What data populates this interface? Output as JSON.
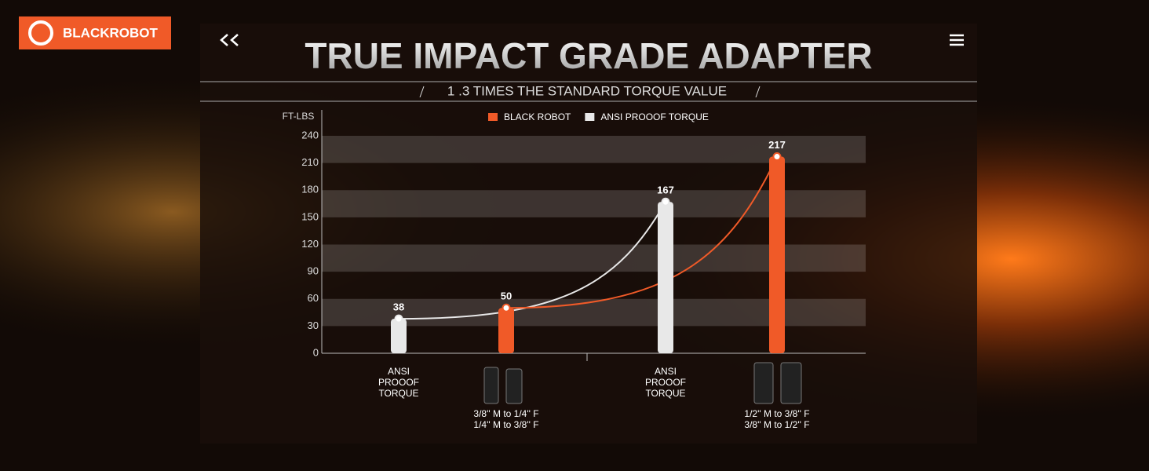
{
  "brand": "BLACKROBOT",
  "chart_data": {
    "type": "bar",
    "title": "TRUE IMPACT GRADE ADAPTER",
    "subtitle": "1 .3 TIMES THE STANDARD TORQUE VALUE",
    "ylabel": "FT-LBS",
    "categories": [
      [
        "ANSI",
        "PROOOF",
        "TORQUE"
      ],
      [
        "3/8'' M to 1/4'' F",
        "1/4'' M to 3/8'' F"
      ],
      [
        "ANSI",
        "PROOOF",
        "TORQUE"
      ],
      [
        "1/2'' M to 3/8'' F",
        "3/8'' M to 1/2'' F"
      ]
    ],
    "series": [
      {
        "name": "BLACK ROBOT",
        "color": "#f05a28",
        "values": [
          null,
          50,
          null,
          217
        ]
      },
      {
        "name": "ANSI PROOOF TORQUE",
        "color": "#e8e8e8",
        "values": [
          38,
          null,
          167,
          null
        ]
      }
    ],
    "ylim": [
      0,
      240
    ],
    "yticks": [
      0,
      30,
      60,
      90,
      120,
      150,
      180,
      210,
      240
    ],
    "grid": "bands"
  }
}
